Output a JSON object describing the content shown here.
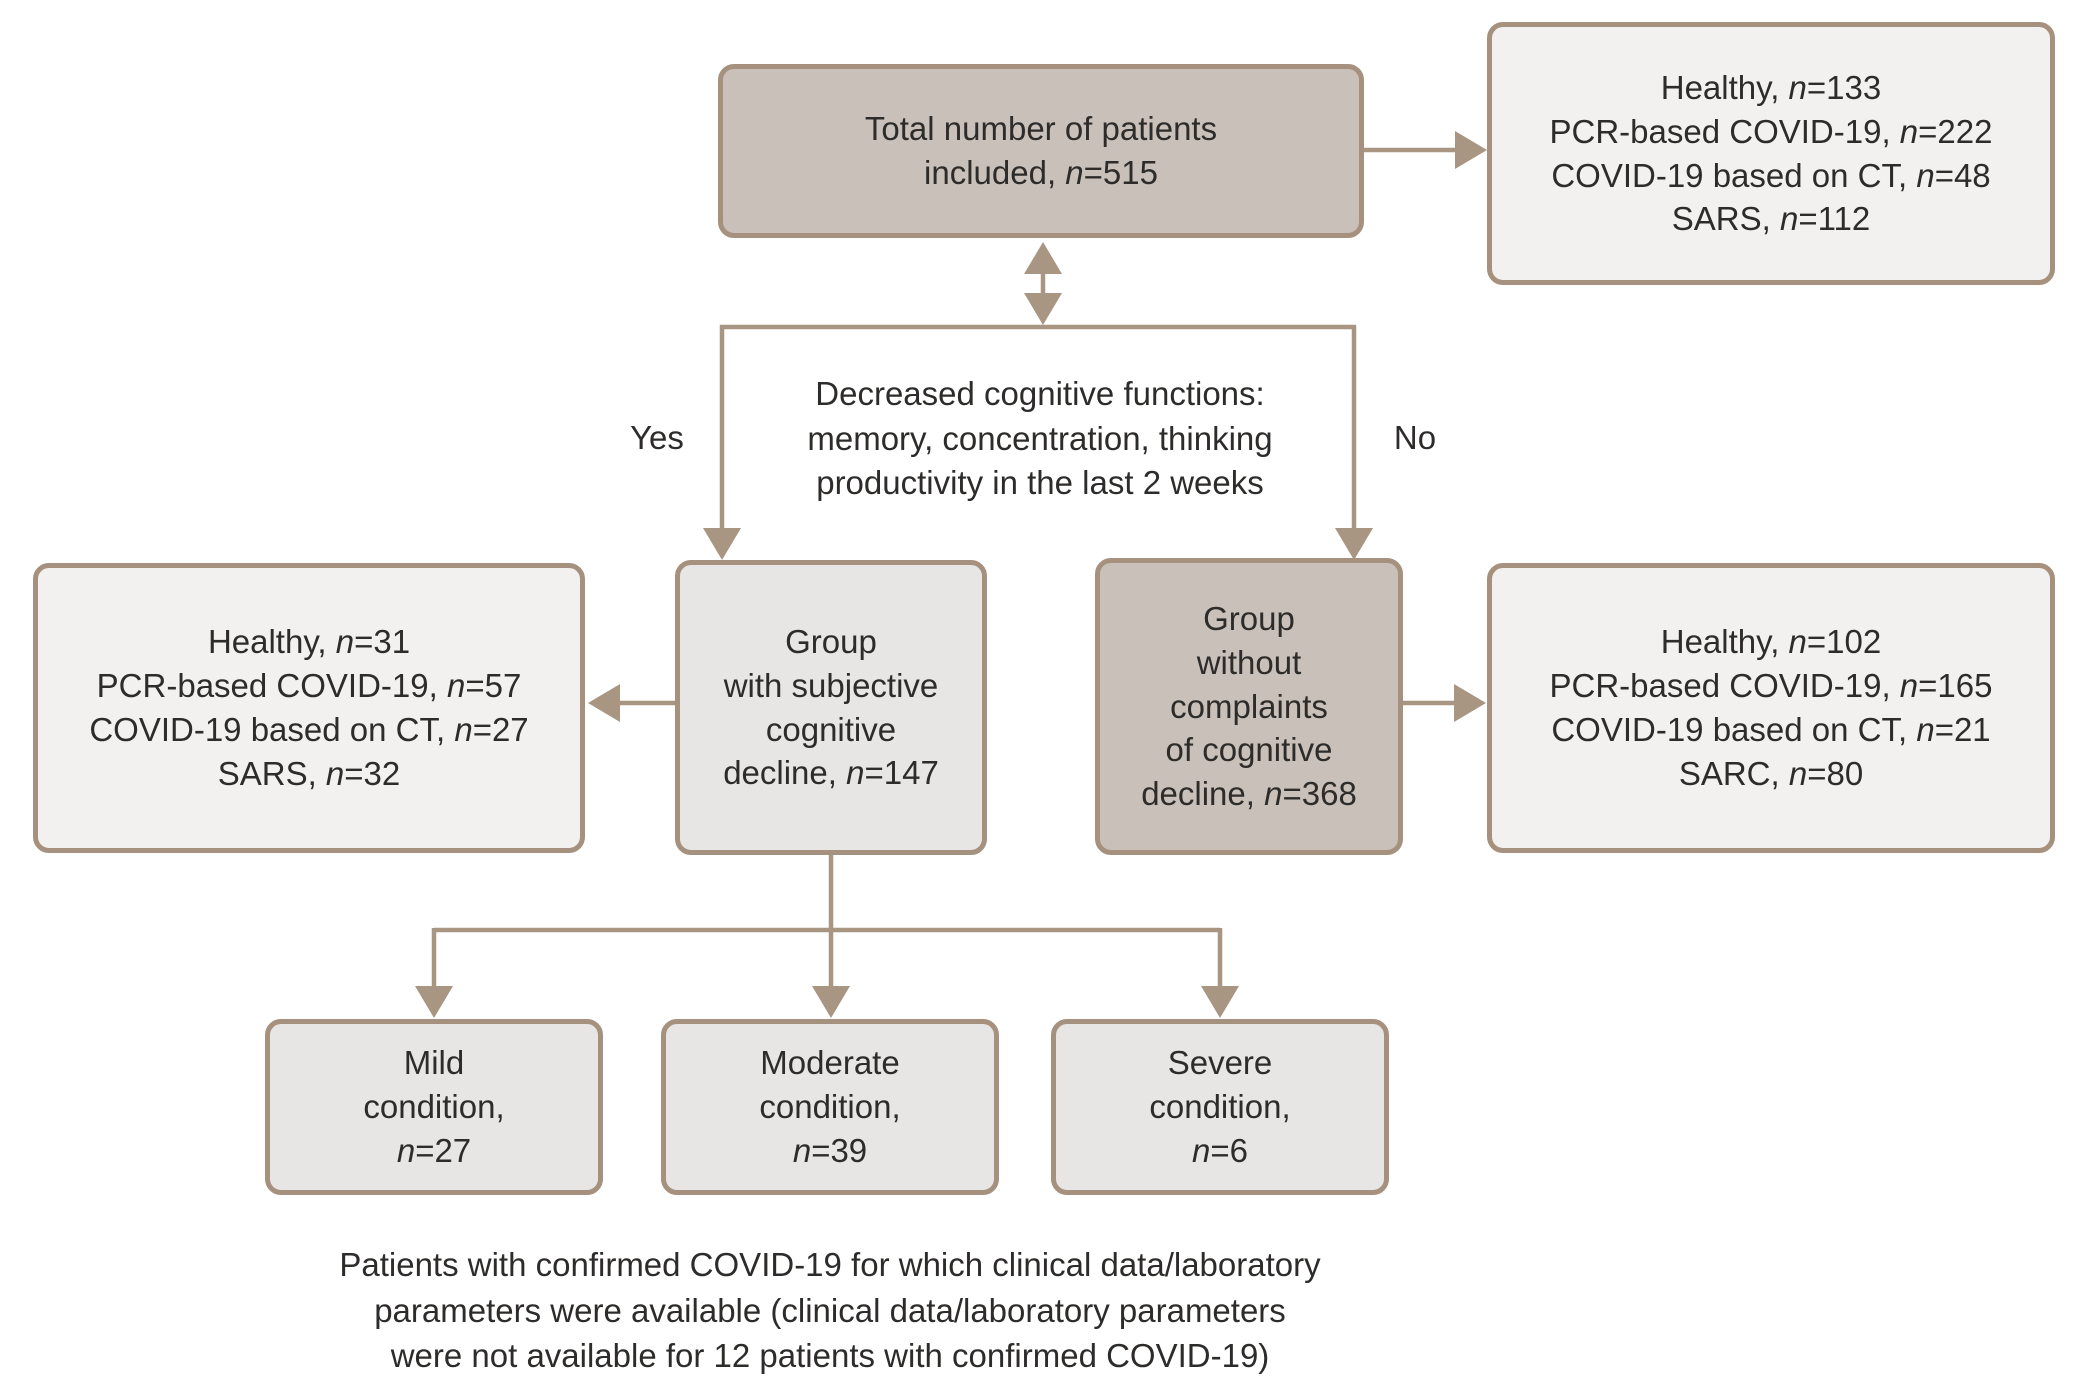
{
  "diagram": {
    "nodes": {
      "total": {
        "lines": [
          "Total number of patients",
          "included, n=515"
        ]
      },
      "total_breakdown": {
        "lines": [
          "Healthy, n=133",
          "PCR-based COVID-19, n=222",
          "COVID-19 based on CT, n=48",
          "SARS, n=112"
        ]
      },
      "decision": {
        "lines": [
          "Decreased cognitive functions:",
          "memory, concentration, thinking",
          "productivity in the last 2 weeks"
        ],
        "yes": "Yes",
        "no": "No"
      },
      "scd": {
        "lines": [
          "Group",
          "with subjective",
          "cognitive",
          "decline, n=147"
        ]
      },
      "scd_breakdown": {
        "lines": [
          "Healthy, n=31",
          "PCR-based COVID-19, n=57",
          "COVID-19 based on CT, n=27",
          "SARS, n=32"
        ]
      },
      "ncd": {
        "lines": [
          "Group",
          "without",
          "complaints",
          "of cognitive",
          "decline, n=368"
        ]
      },
      "ncd_breakdown": {
        "lines": [
          "Healthy, n=102",
          "PCR-based COVID-19, n=165",
          "COVID-19 based on CT, n=21",
          "SARC, n=80"
        ]
      },
      "mild": {
        "lines": [
          "Mild",
          "condition,",
          "n=27"
        ]
      },
      "moderate": {
        "lines": [
          "Moderate",
          "condition,",
          "n=39"
        ]
      },
      "severe": {
        "lines": [
          "Severe",
          "condition,",
          "n=6"
        ]
      }
    },
    "edges": [
      {
        "from": "total",
        "to": "total_breakdown",
        "type": "arrow-right"
      },
      {
        "from": "total",
        "to": "decision",
        "type": "double-arrow"
      },
      {
        "from": "decision",
        "to": "scd",
        "label": "Yes"
      },
      {
        "from": "decision",
        "to": "ncd",
        "label": "No"
      },
      {
        "from": "scd",
        "to": "scd_breakdown",
        "type": "arrow-left"
      },
      {
        "from": "ncd",
        "to": "ncd_breakdown",
        "type": "arrow-right"
      },
      {
        "from": "scd",
        "to": "mild",
        "type": "arrow-down"
      },
      {
        "from": "scd",
        "to": "moderate",
        "type": "arrow-down"
      },
      {
        "from": "scd",
        "to": "severe",
        "type": "arrow-down"
      }
    ],
    "footnote_lines": [
      "Patients with confirmed COVID-19 for which clinical data/laboratory",
      "parameters were available (clinical data/laboratory parameters",
      "were not available for 12 patients with confirmed COVID-19)"
    ]
  },
  "colors": {
    "box_dark": "#c9c1b9",
    "box_light": "#f2f1ef",
    "box_gray": "#e7e6e4",
    "border": "#a5917d",
    "connector": "#a89683",
    "text": "#2e2c2a"
  }
}
